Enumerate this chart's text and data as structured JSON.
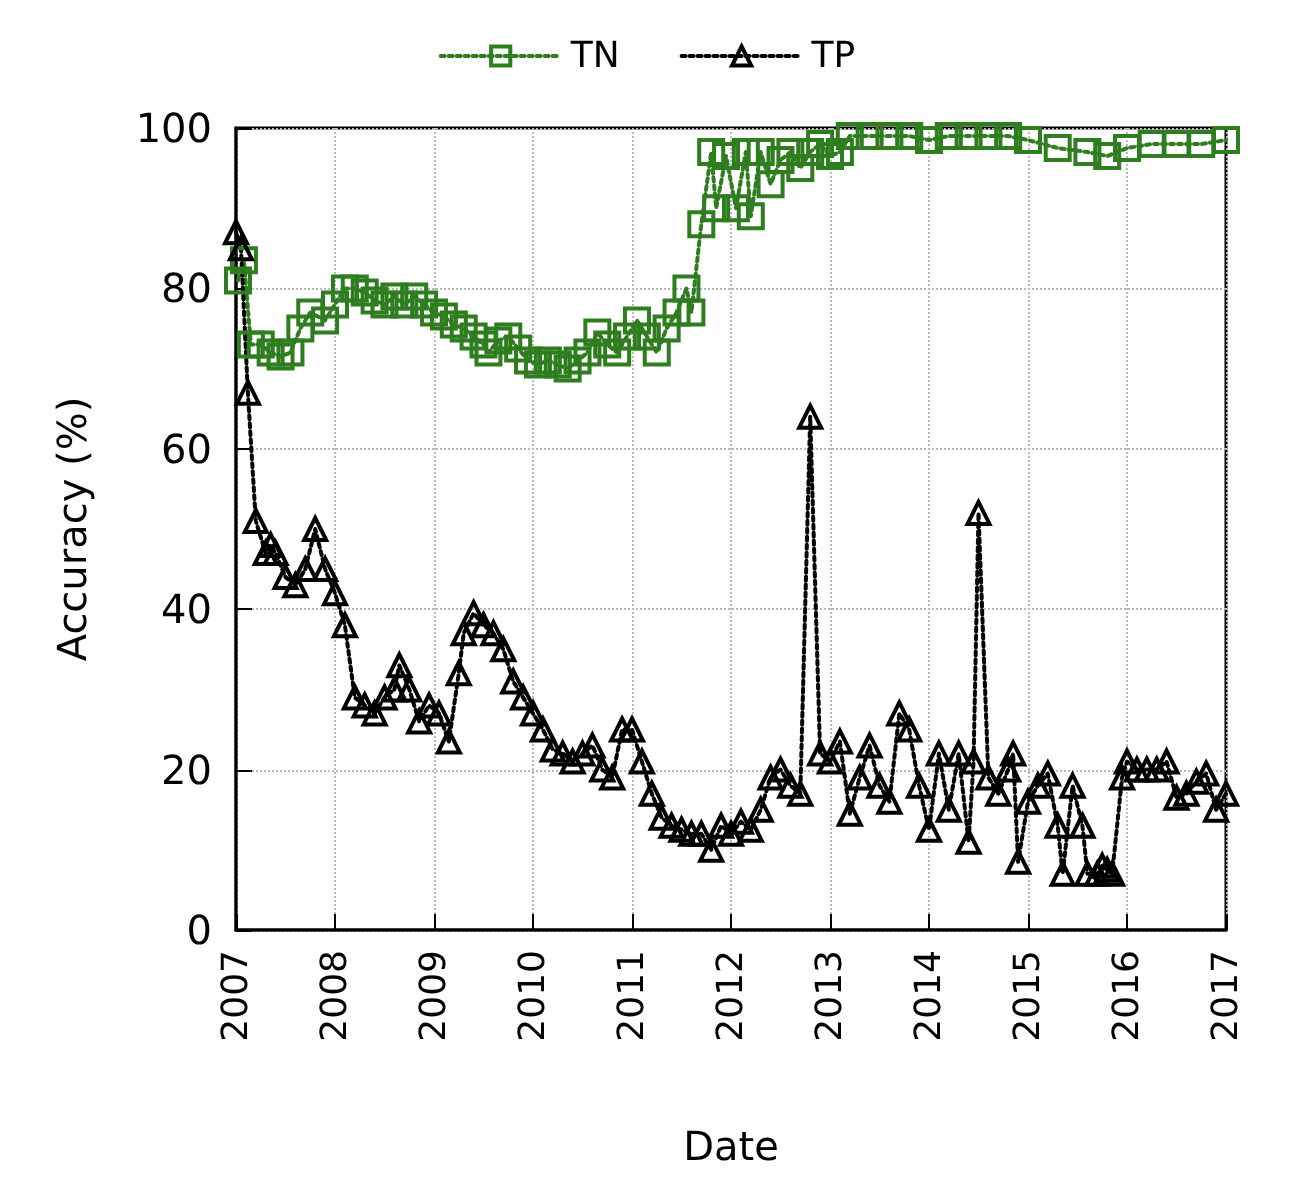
{
  "chart_data": {
    "type": "line",
    "xlabel": "Date",
    "ylabel": "Accuracy (%)",
    "xlim": [
      2007,
      2017
    ],
    "xticks": [
      2007,
      2008,
      2009,
      2010,
      2011,
      2012,
      2013,
      2014,
      2015,
      2016,
      2017
    ],
    "ylim": [
      0,
      100
    ],
    "yticks": [
      0,
      20,
      40,
      60,
      80,
      100
    ],
    "grid": true,
    "legend": "top",
    "line_style": "dotted",
    "series": [
      {
        "name": "TN",
        "color": "#2e7d1f",
        "marker": "square",
        "x": [
          2007.02,
          2007.08,
          2007.15,
          2007.25,
          2007.35,
          2007.45,
          2007.55,
          2007.65,
          2007.75,
          2007.9,
          2008.0,
          2008.1,
          2008.2,
          2008.3,
          2008.4,
          2008.5,
          2008.6,
          2008.7,
          2008.8,
          2008.9,
          2009.0,
          2009.1,
          2009.2,
          2009.3,
          2009.4,
          2009.5,
          2009.55,
          2009.65,
          2009.75,
          2009.85,
          2009.95,
          2010.05,
          2010.15,
          2010.25,
          2010.35,
          2010.45,
          2010.55,
          2010.65,
          2010.75,
          2010.85,
          2010.95,
          2011.05,
          2011.15,
          2011.25,
          2011.35,
          2011.45,
          2011.55,
          2011.6,
          2011.7,
          2011.8,
          2011.85,
          2011.95,
          2012.05,
          2012.15,
          2012.2,
          2012.3,
          2012.4,
          2012.5,
          2012.6,
          2012.7,
          2012.8,
          2012.9,
          2013.0,
          2013.1,
          2013.2,
          2013.4,
          2013.6,
          2013.8,
          2014.0,
          2014.2,
          2014.4,
          2014.6,
          2014.8,
          2015.0,
          2015.3,
          2015.6,
          2015.8,
          2016.0,
          2016.25,
          2016.5,
          2016.75,
          2017.0
        ],
        "values": [
          81,
          83.5,
          73,
          73,
          72,
          71.5,
          72,
          75,
          77,
          76,
          78,
          80,
          80,
          79.5,
          78.5,
          78,
          79,
          78,
          79,
          78,
          77,
          76.5,
          75.5,
          75,
          74,
          73,
          72,
          73.5,
          74,
          72.5,
          71,
          70.5,
          71,
          70.5,
          70,
          71,
          72,
          74.5,
          73,
          72,
          74,
          76,
          74,
          72,
          75,
          77,
          80,
          77,
          88,
          97,
          90,
          96.5,
          90,
          97,
          89,
          97,
          93,
          96,
          97,
          95,
          97,
          98,
          96.5,
          97,
          99,
          99,
          99,
          99,
          98.5,
          99,
          99,
          99,
          99,
          98.5,
          97.5,
          97,
          96.5,
          97.5,
          98,
          98,
          98,
          98.5
        ]
      },
      {
        "name": "TP",
        "color": "#000000",
        "marker": "triangle",
        "x": [
          2007.0,
          2007.05,
          2007.12,
          2007.2,
          2007.3,
          2007.35,
          2007.4,
          2007.5,
          2007.6,
          2007.7,
          2007.8,
          2007.9,
          2008.0,
          2008.1,
          2008.2,
          2008.3,
          2008.4,
          2008.5,
          2008.6,
          2008.65,
          2008.75,
          2008.85,
          2008.95,
          2009.05,
          2009.15,
          2009.25,
          2009.3,
          2009.4,
          2009.5,
          2009.6,
          2009.7,
          2009.8,
          2009.9,
          2010.0,
          2010.1,
          2010.2,
          2010.3,
          2010.4,
          2010.5,
          2010.6,
          2010.7,
          2010.8,
          2010.9,
          2011.0,
          2011.1,
          2011.2,
          2011.3,
          2011.4,
          2011.5,
          2011.6,
          2011.7,
          2011.8,
          2011.9,
          2012.0,
          2012.1,
          2012.2,
          2012.3,
          2012.4,
          2012.5,
          2012.6,
          2012.7,
          2012.8,
          2012.9,
          2013.0,
          2013.1,
          2013.2,
          2013.3,
          2013.4,
          2013.5,
          2013.6,
          2013.7,
          2013.8,
          2013.9,
          2014.0,
          2014.1,
          2014.2,
          2014.3,
          2014.4,
          2014.45,
          2014.5,
          2014.6,
          2014.7,
          2014.8,
          2014.85,
          2014.9,
          2015.0,
          2015.1,
          2015.2,
          2015.3,
          2015.35,
          2015.45,
          2015.55,
          2015.6,
          2015.7,
          2015.75,
          2015.8,
          2015.85,
          2015.95,
          2016.0,
          2016.1,
          2016.2,
          2016.3,
          2016.4,
          2016.5,
          2016.6,
          2016.7,
          2016.8,
          2016.9,
          2017.0
        ],
        "values": [
          87,
          85,
          67,
          51,
          47,
          48,
          47,
          44,
          43,
          45,
          50,
          45,
          42,
          38,
          29,
          28,
          27,
          29,
          30,
          33,
          30,
          26,
          28,
          27,
          23.5,
          32,
          37,
          39.5,
          38,
          37,
          35,
          31,
          29,
          27,
          25,
          22.5,
          22,
          21,
          22,
          23,
          20,
          19,
          25,
          25,
          21,
          17,
          14,
          13,
          12.5,
          12,
          12,
          10,
          13,
          12,
          13.5,
          12.5,
          15,
          19,
          20,
          18,
          17,
          64,
          22,
          21,
          23.5,
          14.5,
          19,
          23,
          18,
          16,
          27,
          25,
          18,
          12.5,
          22,
          15,
          22,
          11,
          21,
          52,
          19,
          17,
          20,
          22,
          8.5,
          16,
          18,
          19.5,
          13,
          7,
          18,
          13,
          7,
          7,
          8,
          7.5,
          7,
          19,
          21,
          20,
          20,
          20,
          21,
          16.5,
          17,
          18.5,
          19.5,
          15,
          17
        ]
      }
    ]
  }
}
